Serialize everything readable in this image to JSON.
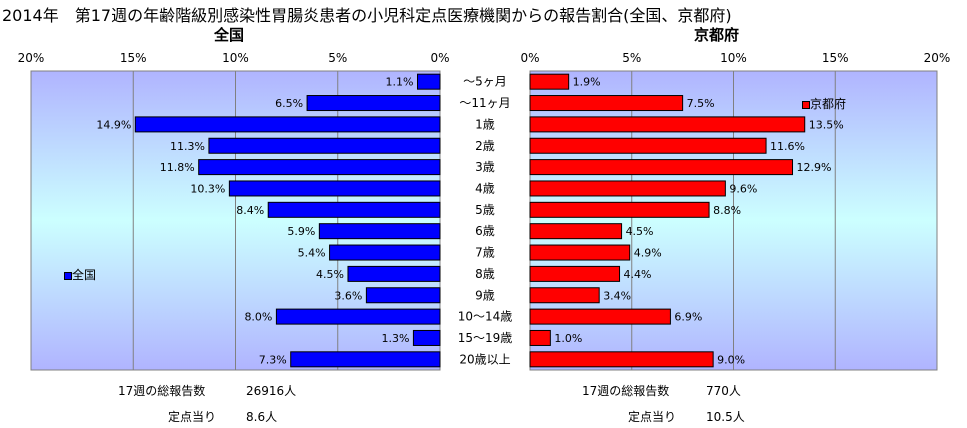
{
  "title": "2014年　第17週の年齢階級別感染性胃腸炎患者の小児科定点医療機関からの報告割合(全国、京都府)",
  "chart_data": [
    {
      "type": "bar",
      "orientation": "horizontal",
      "title": "全国",
      "x_direction": "reversed",
      "xlim": [
        0,
        20
      ],
      "x_ticks": [
        "20%",
        "15%",
        "10%",
        "5%",
        "0%"
      ],
      "categories": [
        "〜5ヶ月",
        "〜11ヶ月",
        "1歳",
        "2歳",
        "3歳",
        "4歳",
        "5歳",
        "6歳",
        "7歳",
        "8歳",
        "9歳",
        "10〜14歳",
        "15〜19歳",
        "20歳以上"
      ],
      "series": [
        {
          "name": "全国",
          "color": "#0000ff",
          "values": [
            1.1,
            6.5,
            14.9,
            11.3,
            11.8,
            10.3,
            8.4,
            5.9,
            5.4,
            4.5,
            3.6,
            8.0,
            1.3,
            7.3
          ],
          "labels": [
            "1.1%",
            "6.5%",
            "14.9%",
            "11.3%",
            "11.8%",
            "10.3%",
            "8.4%",
            "5.9%",
            "5.4%",
            "4.5%",
            "3.6%",
            "8.0%",
            "1.3%",
            "7.3%"
          ]
        }
      ],
      "legend": "left",
      "grid": true
    },
    {
      "type": "bar",
      "orientation": "horizontal",
      "title": "京都府",
      "xlim": [
        0,
        20
      ],
      "x_ticks": [
        "0%",
        "5%",
        "10%",
        "15%",
        "20%"
      ],
      "categories": [
        "〜5ヶ月",
        "〜11ヶ月",
        "1歳",
        "2歳",
        "3歳",
        "4歳",
        "5歳",
        "6歳",
        "7歳",
        "8歳",
        "9歳",
        "10〜14歳",
        "15〜19歳",
        "20歳以上"
      ],
      "series": [
        {
          "name": "京都府",
          "color": "#ff0000",
          "values": [
            1.9,
            7.5,
            13.5,
            11.6,
            12.9,
            9.6,
            8.8,
            4.5,
            4.9,
            4.4,
            3.4,
            6.9,
            1.0,
            9.0
          ],
          "labels": [
            "1.9%",
            "7.5%",
            "13.5%",
            "11.6%",
            "12.9%",
            "9.6%",
            "8.8%",
            "4.5%",
            "4.9%",
            "4.4%",
            "3.4%",
            "6.9%",
            "1.0%",
            "9.0%"
          ]
        }
      ],
      "legend": "top-right",
      "grid": true
    }
  ],
  "footer": {
    "national": {
      "total_label": "17週の総報告数",
      "total_value": "26916人",
      "per_label": "定点当り",
      "per_value": "8.6人"
    },
    "kyoto": {
      "total_label": "17週の総報告数",
      "total_value": "770人",
      "per_label": "定点当り",
      "per_value": "10.5人"
    }
  },
  "colors": {
    "plot_edge": "#a0a0ff",
    "plot_mid": "#ccffff",
    "national_bar": "#0000ff",
    "kyoto_bar": "#ff0000"
  }
}
